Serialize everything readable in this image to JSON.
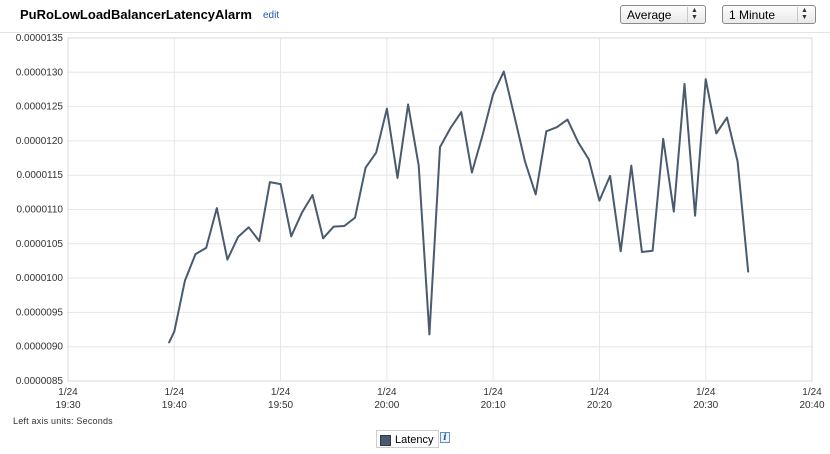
{
  "header": {
    "title": "PuRoLowLoadBalancerLatencyAlarm",
    "edit_label": "edit",
    "statistic_select": "Average",
    "period_select": "1 Minute"
  },
  "footer": {
    "units_label": "Left axis units: Seconds"
  },
  "legend": {
    "label": "Latency",
    "info_glyph": "i"
  },
  "colors": {
    "series": "#4a5b6f",
    "grid": "#e6e6e6"
  },
  "icons": [
    "chevron-updown-icon",
    "info-icon"
  ],
  "chart_data": {
    "type": "line",
    "title": "",
    "xlabel": "",
    "ylabel": "",
    "ylim": [
      8.5e-06,
      1.35e-05
    ],
    "y_ticks": [
      "0.0000135",
      "0.0000130",
      "0.0000125",
      "0.0000120",
      "0.0000115",
      "0.0000110",
      "0.0000105",
      "0.0000100",
      "0.0000095",
      "0.0000090",
      "0.0000085"
    ],
    "y_tick_values": [
      1.35e-05,
      1.3e-05,
      1.25e-05,
      1.2e-05,
      1.15e-05,
      1.1e-05,
      1.05e-05,
      1e-05,
      9.5e-06,
      9e-06,
      8.5e-06
    ],
    "x_range_minutes": [
      0,
      70
    ],
    "x_ticks": [
      {
        "date": "1/24",
        "time": "19:30",
        "minute": 0
      },
      {
        "date": "1/24",
        "time": "19:40",
        "minute": 10
      },
      {
        "date": "1/24",
        "time": "19:50",
        "minute": 20
      },
      {
        "date": "1/24",
        "time": "20:00",
        "minute": 30
      },
      {
        "date": "1/24",
        "time": "20:10",
        "minute": 40
      },
      {
        "date": "1/24",
        "time": "20:20",
        "minute": 50
      },
      {
        "date": "1/24",
        "time": "20:30",
        "minute": 60
      },
      {
        "date": "1/24",
        "time": "20:40",
        "minute": 70
      }
    ],
    "grid": true,
    "legend": "bottom-center",
    "series": [
      {
        "name": "Latency",
        "x": [
          9.5,
          10,
          11,
          12,
          13,
          14,
          15,
          16,
          17,
          18,
          19,
          20,
          21,
          22,
          23,
          24,
          25,
          26,
          27,
          28,
          29,
          30,
          31,
          32,
          33,
          34,
          35,
          36,
          37,
          38,
          39,
          40,
          41,
          42,
          43,
          44,
          45,
          46,
          47,
          48,
          49,
          50,
          51,
          52,
          53,
          54,
          55,
          56,
          57,
          58,
          59,
          60,
          61,
          62,
          63,
          64
        ],
        "values": [
          9.06e-06,
          9.22e-06,
          9.96e-06,
          1.035e-05,
          1.044e-05,
          1.102e-05,
          1.027e-05,
          1.06e-05,
          1.074e-05,
          1.054e-05,
          1.14e-05,
          1.137e-05,
          1.061e-05,
          1.095e-05,
          1.121e-05,
          1.058e-05,
          1.075e-05,
          1.076e-05,
          1.088e-05,
          1.161e-05,
          1.183e-05,
          1.247e-05,
          1.146e-05,
          1.253e-05,
          1.164e-05,
          9.18e-06,
          1.191e-05,
          1.219e-05,
          1.242e-05,
          1.154e-05,
          1.208e-05,
          1.268e-05,
          1.301e-05,
          1.236e-05,
          1.17e-05,
          1.122e-05,
          1.214e-05,
          1.22e-05,
          1.231e-05,
          1.198e-05,
          1.173e-05,
          1.113e-05,
          1.149e-05,
          1.039e-05,
          1.164e-05,
          1.038e-05,
          1.04e-05,
          1.203e-05,
          1.097e-05,
          1.283e-05,
          1.091e-05,
          1.29e-05,
          1.211e-05,
          1.234e-05,
          1.17e-05,
          1.009e-05
        ]
      }
    ]
  }
}
